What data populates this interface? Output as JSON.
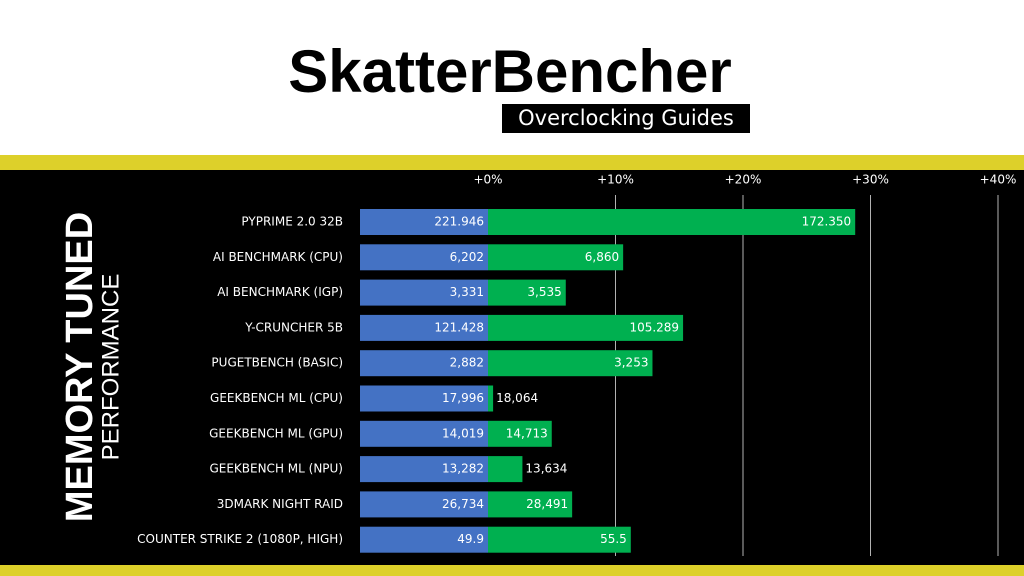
{
  "chart_data": {
    "type": "bar",
    "title": "SkatterBencher",
    "subtitle": "Overclocking Guides",
    "side_title": "MEMORY TUNED",
    "side_subtitle": "PERFORMANCE",
    "categories": [
      "PYPRIME 2.0 32B",
      "AI BENCHMARK (CPU)",
      "AI BENCHMARK (IGP)",
      "Y-CRUNCHER 5B",
      "PUGETBENCH (BASIC)",
      "GEEKBENCH ML (CPU)",
      "GEEKBENCH ML (GPU)",
      "GEEKBENCH ML (NPU)",
      "3DMARK NIGHT RAID",
      "COUNTER STRIKE 2 (1080P, HIGH)"
    ],
    "values": [
      28.8,
      10.6,
      6.1,
      15.3,
      12.9,
      0.4,
      5.0,
      2.7,
      6.6,
      11.2
    ],
    "baseline_labels": [
      "221.946",
      "6,202",
      "3,331",
      "121.428",
      "2,882",
      "17,996",
      "14,019",
      "13,282",
      "26,734",
      "49.9"
    ],
    "tuned_labels": [
      "172.350",
      "6,860",
      "3,535",
      "105.289",
      "3,253",
      "18,064",
      "14,713",
      "13,634",
      "28,491",
      "55.5"
    ],
    "baseline_color": "#4472c4",
    "color": "#00b050",
    "xlim": [
      0,
      40
    ],
    "xticks": [
      {
        "value": 0,
        "label": "+0%"
      },
      {
        "value": 10,
        "label": "+10%"
      },
      {
        "value": 20,
        "label": "+20%"
      },
      {
        "value": 30,
        "label": "+30%"
      },
      {
        "value": 40,
        "label": "+40%"
      }
    ],
    "grid": true
  }
}
